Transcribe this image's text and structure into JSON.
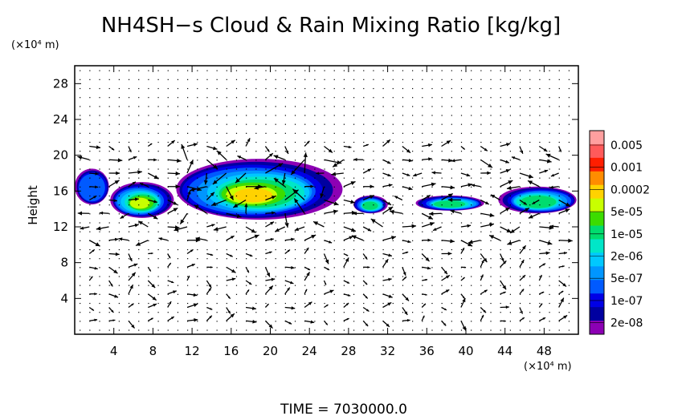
{
  "chart_data": {
    "type": "heatmap",
    "title": "NH4SH−s Cloud & Rain Mixing Ratio [kg/kg]",
    "ylabel": "Height",
    "y_scale_label": "(×10⁴ m)",
    "x_scale_label": "(×10⁴ m)",
    "xlim": [
      0,
      51.5
    ],
    "ylim": [
      0,
      30
    ],
    "x_ticks": [
      "4",
      "8",
      "12",
      "16",
      "20",
      "24",
      "28",
      "32",
      "36",
      "40",
      "44",
      "48"
    ],
    "y_ticks": [
      "4",
      "8",
      "12",
      "16",
      "20",
      "24",
      "28"
    ],
    "colorbar": {
      "labels": [
        "0.005",
        "0.001",
        "0.0002",
        "5e-05",
        "1e-05",
        "2e-06",
        "5e-07",
        "1e-07",
        "2e-08"
      ],
      "colors": [
        "#ff9f9f",
        "#ff5a5a",
        "#ff1e00",
        "#ff8c00",
        "#ffd200",
        "#c8ff00",
        "#3cdc00",
        "#00dc6e",
        "#00e6c8",
        "#00c8ff",
        "#0096ff",
        "#005aff",
        "#0000e6",
        "#0000a0",
        "#8c00b4"
      ]
    },
    "cloud_regions": [
      {
        "x_range": [
          0,
          3.5
        ],
        "y_range": [
          14.5,
          18.5
        ],
        "peak_level": "1e-07"
      },
      {
        "x_range": [
          3.5,
          10
        ],
        "y_range": [
          13,
          17
        ],
        "peak_level": "0.0002"
      },
      {
        "x_range": [
          10,
          27
        ],
        "y_range": [
          12.8,
          19.6
        ],
        "peak_level": "0.001"
      },
      {
        "x_range": [
          28.5,
          32
        ],
        "y_range": [
          13.5,
          15.5
        ],
        "peak_level": "5e-05"
      },
      {
        "x_range": [
          35,
          42
        ],
        "y_range": [
          13.8,
          15.5
        ],
        "peak_level": "5e-05"
      },
      {
        "x_range": [
          43.5,
          51.5
        ],
        "y_range": [
          13.5,
          16.5
        ],
        "peak_level": "5e-05"
      }
    ],
    "vectors": "wind arrows plotted on a regular grid over the full domain"
  },
  "footer": {
    "time": "TIME  =  7030000.0"
  }
}
